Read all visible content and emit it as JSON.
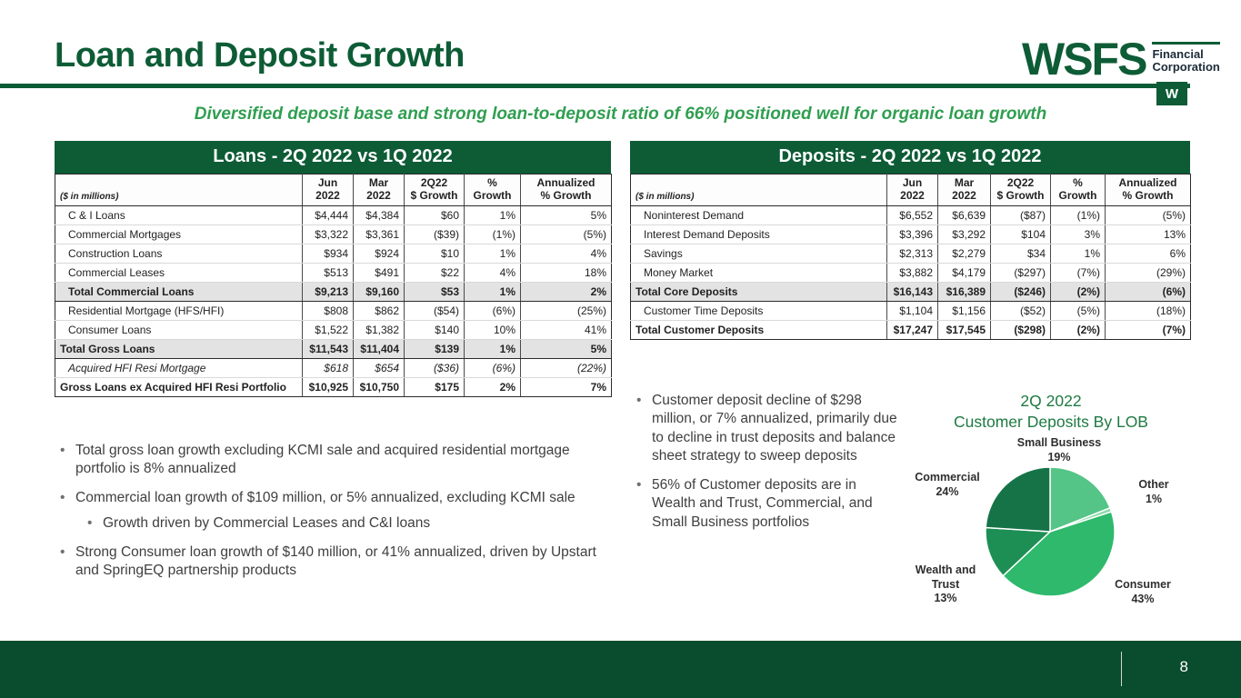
{
  "slide": {
    "title": "Loan and Deposit Growth",
    "subtitle": "Diversified deposit base and strong loan-to-deposit ratio of 66% positioned well for organic loan growth",
    "page_number": "8"
  },
  "logo": {
    "wordmark": "WSFS",
    "line1": "Financial",
    "line2": "Corporation",
    "mark": "W"
  },
  "colors": {
    "brand_green": "#0d5c36",
    "accent_green": "#2f9e50",
    "footer_green": "#0a4c2e"
  },
  "loans_table": {
    "title": "Loans - 2Q 2022 vs 1Q 2022",
    "unit_note": "($ in millions)",
    "col_headers": [
      [
        "Jun",
        "2022"
      ],
      [
        "Mar",
        "2022"
      ],
      [
        "2Q22",
        "$ Growth"
      ],
      [
        "%",
        "Growth"
      ],
      [
        "Annualized",
        "% Growth"
      ]
    ],
    "rows": [
      {
        "label": "C & I Loans",
        "style": "indent",
        "cells": [
          "$4,444",
          "$4,384",
          "$60",
          "1%",
          "5%"
        ]
      },
      {
        "label": "Commercial Mortgages",
        "style": "indent",
        "cells": [
          "$3,322",
          "$3,361",
          "($39)",
          "(1%)",
          "(5%)"
        ]
      },
      {
        "label": "Construction Loans",
        "style": "indent",
        "cells": [
          "$934",
          "$924",
          "$10",
          "1%",
          "4%"
        ]
      },
      {
        "label": "Commercial Leases",
        "style": "indent",
        "cells": [
          "$513",
          "$491",
          "$22",
          "4%",
          "18%"
        ]
      },
      {
        "label": "Total Commercial Loans",
        "style": "total indent",
        "cells": [
          "$9,213",
          "$9,160",
          "$53",
          "1%",
          "2%"
        ]
      },
      {
        "label": "Residential Mortgage (HFS/HFI)",
        "style": "indent",
        "cells": [
          "$808",
          "$862",
          "($54)",
          "(6%)",
          "(25%)"
        ]
      },
      {
        "label": "Consumer Loans",
        "style": "indent",
        "cells": [
          "$1,522",
          "$1,382",
          "$140",
          "10%",
          "41%"
        ]
      },
      {
        "label": "Total Gross Loans",
        "style": "total",
        "cells": [
          "$11,543",
          "$11,404",
          "$139",
          "1%",
          "5%"
        ]
      },
      {
        "label": "Acquired HFI Resi Mortgage",
        "style": "italic",
        "cells": [
          "$618",
          "$654",
          "($36)",
          "(6%)",
          "(22%)"
        ]
      },
      {
        "label": "Gross Loans ex Acquired HFI Resi Portfolio",
        "style": "bold",
        "cells": [
          "$10,925",
          "$10,750",
          "$175",
          "2%",
          "7%"
        ]
      }
    ]
  },
  "deposits_table": {
    "title": "Deposits - 2Q 2022 vs 1Q 2022",
    "unit_note": "($ in millions)",
    "col_headers": [
      [
        "Jun",
        "2022"
      ],
      [
        "Mar",
        "2022"
      ],
      [
        "2Q22",
        "$ Growth"
      ],
      [
        "%",
        "Growth"
      ],
      [
        "Annualized",
        "% Growth"
      ]
    ],
    "rows": [
      {
        "label": "Noninterest Demand",
        "style": "indent",
        "cells": [
          "$6,552",
          "$6,639",
          "($87)",
          "(1%)",
          "(5%)"
        ]
      },
      {
        "label": "Interest Demand Deposits",
        "style": "indent",
        "cells": [
          "$3,396",
          "$3,292",
          "$104",
          "3%",
          "13%"
        ]
      },
      {
        "label": "Savings",
        "style": "indent",
        "cells": [
          "$2,313",
          "$2,279",
          "$34",
          "1%",
          "6%"
        ]
      },
      {
        "label": "Money Market",
        "style": "indent",
        "cells": [
          "$3,882",
          "$4,179",
          "($297)",
          "(7%)",
          "(29%)"
        ]
      },
      {
        "label": "Total Core Deposits",
        "style": "total",
        "cells": [
          "$16,143",
          "$16,389",
          "($246)",
          "(2%)",
          "(6%)"
        ]
      },
      {
        "label": "Customer Time Deposits",
        "style": "indent",
        "cells": [
          "$1,104",
          "$1,156",
          "($52)",
          "(5%)",
          "(18%)"
        ]
      },
      {
        "label": "Total Customer Deposits",
        "style": "bold",
        "cells": [
          "$17,247",
          "$17,545",
          "($298)",
          "(2%)",
          "(7%)"
        ]
      }
    ]
  },
  "loan_bullets": [
    {
      "level": 1,
      "text": "Total gross loan growth excluding KCMI sale and acquired residential mortgage portfolio is 8% annualized"
    },
    {
      "level": 1,
      "text": "Commercial loan growth of $109 million, or 5% annualized, excluding KCMI sale"
    },
    {
      "level": 2,
      "text": "Growth driven by Commercial Leases and C&I loans"
    },
    {
      "level": 1,
      "text": "Strong Consumer loan growth of $140 million, or 41% annualized, driven by Upstart and SpringEQ partnership products"
    }
  ],
  "deposit_bullets": [
    {
      "level": 1,
      "text": "Customer deposit decline of $298 million, or 7% annualized, primarily due to decline in trust deposits and balance sheet strategy to sweep deposits"
    },
    {
      "level": 1,
      "text": "56% of Customer deposits are in Wealth and Trust, Commercial, and Small Business portfolios"
    }
  ],
  "chart_data": {
    "type": "pie",
    "title": "2Q 2022",
    "subtitle": "Customer Deposits By LOB",
    "legend_position": "labels-around",
    "segments": [
      {
        "label": "Small Business",
        "pct": 19,
        "pct_label": "19%",
        "color": "#55c487"
      },
      {
        "label": "Other",
        "pct": 1,
        "pct_label": "1%",
        "color": "#8adba9"
      },
      {
        "label": "Consumer",
        "pct": 43,
        "pct_label": "43%",
        "color": "#2eb96c"
      },
      {
        "label": "Wealth and Trust",
        "pct": 13,
        "pct_label": "13%",
        "color": "#1e8f54"
      },
      {
        "label": "Commercial",
        "pct": 24,
        "pct_label": "24%",
        "color": "#157347"
      }
    ]
  }
}
